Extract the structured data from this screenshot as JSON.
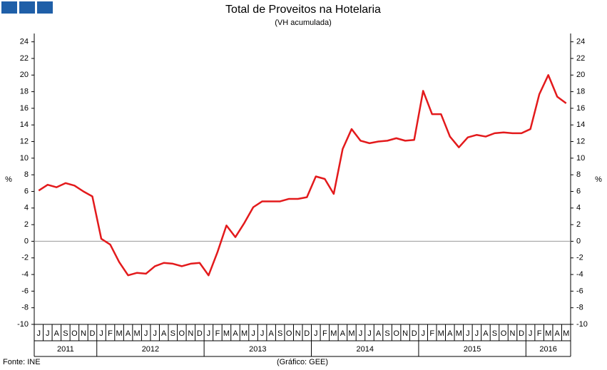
{
  "chart_data": {
    "type": "line",
    "title": "Total de Proveitos na Hotelaria",
    "subtitle": "(VH acumulada)",
    "y_label": "%",
    "source": "Fonte: INE",
    "credit": "(Gráfico: GEE)",
    "categories": [
      "J",
      "J",
      "A",
      "S",
      "O",
      "N",
      "D",
      "J",
      "F",
      "M",
      "A",
      "M",
      "J",
      "J",
      "A",
      "S",
      "O",
      "N",
      "D",
      "J",
      "F",
      "M",
      "A",
      "M",
      "J",
      "J",
      "A",
      "S",
      "O",
      "N",
      "D",
      "J",
      "F",
      "M",
      "A",
      "M",
      "J",
      "J",
      "A",
      "S",
      "O",
      "N",
      "D",
      "J",
      "F",
      "M",
      "A",
      "M",
      "J",
      "J",
      "A",
      "S",
      "O",
      "N",
      "D",
      "J",
      "F",
      "M",
      "A",
      "M"
    ],
    "year_labels": [
      "2011",
      "2012",
      "2013",
      "2014",
      "2015",
      "2016"
    ],
    "series": [
      {
        "name": "Total de Proveitos",
        "color": "#e31a1c",
        "values": [
          6.1,
          6.8,
          6.5,
          7.0,
          6.7,
          6.0,
          5.4,
          0.3,
          -0.4,
          -2.5,
          -4.1,
          -3.8,
          -3.9,
          -3.0,
          -2.6,
          -2.7,
          -3.0,
          -2.7,
          -2.6,
          -4.1,
          -1.3,
          1.9,
          0.5,
          2.2,
          4.1,
          4.8,
          4.8,
          4.8,
          5.1,
          5.1,
          5.3,
          7.8,
          7.5,
          5.7,
          11.1,
          13.5,
          12.1,
          11.8,
          12.0,
          12.1,
          12.4,
          12.1,
          12.2,
          18.1,
          15.3,
          15.3,
          12.6,
          11.3,
          12.5,
          12.8,
          12.6,
          13.0,
          13.1,
          13.0,
          13.0,
          13.5,
          17.7,
          20.0,
          17.4,
          16.6
        ]
      }
    ],
    "ylim": [
      -10,
      25
    ],
    "yticks": [
      -10,
      -8,
      -6,
      -4,
      -2,
      0,
      2,
      4,
      6,
      8,
      10,
      12,
      14,
      16,
      18,
      20,
      22,
      24
    ],
    "grid": false
  }
}
